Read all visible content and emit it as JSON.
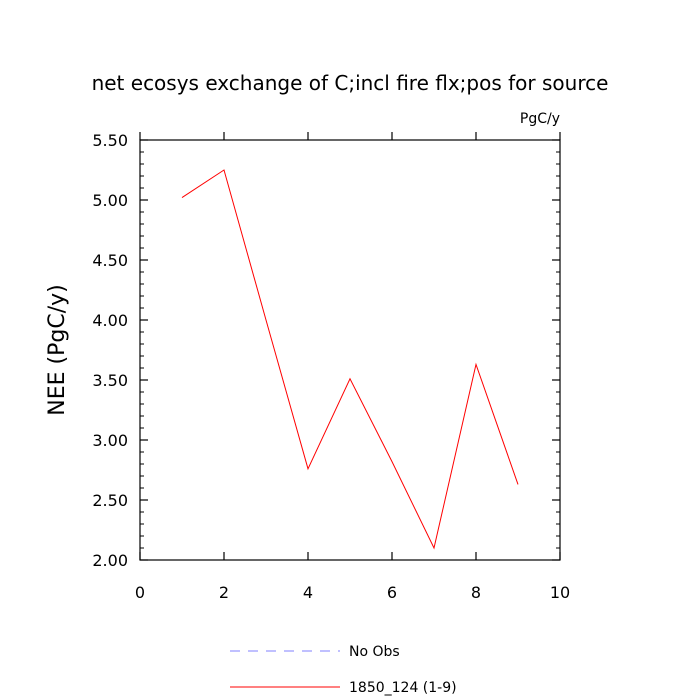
{
  "chart_data": {
    "type": "line",
    "title": "net ecosys exchange of C;incl fire flx;pos for source",
    "units": "PgC/y",
    "xlabel": "",
    "ylabel": "NEE  (PgC/y)",
    "xlim": [
      0,
      10
    ],
    "ylim": [
      2.0,
      5.5
    ],
    "xticks": [
      0,
      2,
      4,
      6,
      8,
      10
    ],
    "xtick_labels": [
      "0",
      "2",
      "4",
      "6",
      "8",
      "10"
    ],
    "yticks": [
      2.0,
      2.5,
      3.0,
      3.5,
      4.0,
      4.5,
      5.0,
      5.5
    ],
    "ytick_labels": [
      "2.00",
      "2.50",
      "3.00",
      "3.50",
      "4.00",
      "4.50",
      "5.00",
      "5.50"
    ],
    "grid": false,
    "legend_position": "bottom-center",
    "series": [
      {
        "name": "No Obs",
        "style": "dashed",
        "color": "#8080ff",
        "x": [],
        "y": []
      },
      {
        "name": "1850_124 (1-9)",
        "style": "solid",
        "color": "#ff0000",
        "x": [
          1,
          2,
          3,
          4,
          5,
          6,
          7,
          8,
          9
        ],
        "y": [
          5.02,
          5.25,
          4.0,
          2.76,
          3.51,
          2.82,
          2.1,
          3.63,
          2.63
        ]
      }
    ]
  }
}
